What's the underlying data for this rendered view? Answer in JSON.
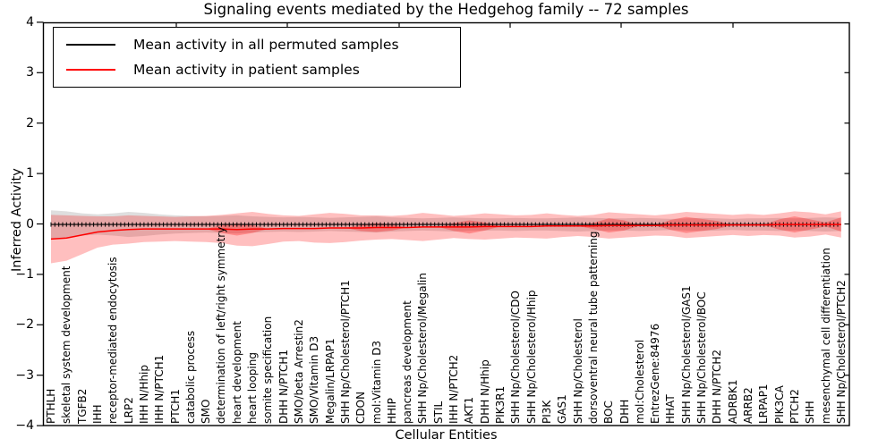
{
  "legend": {
    "items": [
      {
        "label": "Mean activity in all permuted samples",
        "color": "#000000"
      },
      {
        "label": "Mean activity in patient samples",
        "color": "#ff0000"
      }
    ]
  },
  "chart_data": {
    "type": "line",
    "title": "Signaling events mediated by the Hedgehog family -- 72 samples",
    "xlabel": "Cellular Entities",
    "ylabel": "Inferred Activity",
    "ylim": [
      -4,
      4
    ],
    "yticks": [
      4,
      3,
      2,
      1,
      0,
      -1,
      -2,
      -3,
      -4
    ],
    "ytick_labels": [
      "4",
      "3",
      "2",
      "1",
      "0",
      "−1",
      "−2",
      "−3",
      "−4"
    ],
    "grid": false,
    "legend_position": "upper left",
    "categories": [
      "PTHLH",
      "skeletal system development",
      "TGFB2",
      "IHH",
      "receptor-mediated endocytosis",
      "LRP2",
      "IHH N/Hhip",
      "IHH N/PTCH1",
      "PTCH1",
      "catabolic process",
      "SMO",
      "determination of left/right symmetry",
      "heart development",
      "heart looping",
      "somite specification",
      "DHH N/PTCH1",
      "SMO/beta Arrestin2",
      "SMO/Vitamin D3",
      "Megalin/LRPAP1",
      "SHH Np/Cholesterol/PTCH1",
      "CDON",
      "mol:Vitamin D3",
      "HHIP",
      "pancreas development",
      "SHH Np/Cholesterol/Megalin",
      "STIL",
      "IHH N/PTCH2",
      "AKT1",
      "DHH N/Hhip",
      "PIK3R1",
      "SHH Np/Cholesterol/CDO",
      "SHH Np/Cholesterol/Hhip",
      "PI3K",
      "GAS1",
      "SHH Np/Cholesterol",
      "dorsoventral neural tube patterning",
      "BOC",
      "DHH",
      "mol:Cholesterol",
      "EntrezGene:84976",
      "HHAT",
      "SHH Np/Cholesterol/GAS1",
      "SHH Np/Cholesterol/BOC",
      "DHH N/PTCH2",
      "ADRBK1",
      "ARRB2",
      "LRPAP1",
      "PIK3CA",
      "PTCH2",
      "SHH",
      "mesenchymal cell differentiation",
      "SHH Np/Cholesterol/PTCH2"
    ],
    "series": [
      {
        "name": "Mean activity in all permuted samples",
        "color": "#000000",
        "values": [
          -0.01,
          -0.01,
          -0.01,
          -0.01,
          -0.01,
          -0.01,
          -0.01,
          -0.01,
          -0.01,
          -0.01,
          -0.01,
          -0.01,
          -0.01,
          -0.01,
          -0.01,
          -0.01,
          -0.01,
          -0.01,
          -0.01,
          -0.01,
          -0.01,
          -0.01,
          -0.01,
          -0.01,
          -0.01,
          -0.01,
          -0.01,
          -0.01,
          -0.01,
          -0.01,
          -0.01,
          -0.01,
          -0.01,
          -0.01,
          -0.01,
          -0.01,
          -0.01,
          -0.01,
          -0.01,
          -0.01,
          -0.01,
          -0.01,
          -0.01,
          -0.01,
          -0.01,
          -0.01,
          -0.01,
          -0.01,
          -0.01,
          -0.01,
          -0.01,
          -0.01
        ]
      },
      {
        "name": "Mean activity in patient samples",
        "color": "#ff0000",
        "values": [
          -0.3,
          -0.28,
          -0.22,
          -0.16,
          -0.13,
          -0.11,
          -0.1,
          -0.1,
          -0.1,
          -0.1,
          -0.1,
          -0.1,
          -0.11,
          -0.1,
          -0.1,
          -0.09,
          -0.09,
          -0.09,
          -0.08,
          -0.08,
          -0.08,
          -0.07,
          -0.07,
          -0.07,
          -0.06,
          -0.06,
          -0.06,
          -0.06,
          -0.05,
          -0.05,
          -0.05,
          -0.05,
          -0.04,
          -0.04,
          -0.04,
          -0.04,
          -0.03,
          -0.03,
          -0.03,
          -0.03,
          -0.02,
          -0.02,
          -0.02,
          -0.02,
          -0.02,
          -0.02,
          -0.02,
          -0.01,
          -0.01,
          -0.01,
          -0.01,
          -0.01
        ]
      }
    ],
    "bands": [
      {
        "name": "permuted-std",
        "color": "#999999",
        "opacity": 0.32,
        "mean_ref": 0,
        "halfwidths": [
          0.28,
          0.26,
          0.22,
          0.2,
          0.22,
          0.25,
          0.23,
          0.2,
          0.18,
          0.17,
          0.16,
          0.17,
          0.18,
          0.16,
          0.15,
          0.14,
          0.15,
          0.14,
          0.13,
          0.14,
          0.15,
          0.16,
          0.14,
          0.13,
          0.12,
          0.13,
          0.14,
          0.13,
          0.12,
          0.12,
          0.13,
          0.12,
          0.12,
          0.13,
          0.14,
          0.13,
          0.12,
          0.12,
          0.13,
          0.12,
          0.11,
          0.12,
          0.13,
          0.12,
          0.11,
          0.12,
          0.12,
          0.13,
          0.12,
          0.13,
          0.14,
          0.13
        ]
      },
      {
        "name": "patient-std",
        "color": "#ff0000",
        "opacity": 0.25,
        "mean_ref": 1,
        "halfwidths": [
          0.48,
          0.45,
          0.38,
          0.31,
          0.28,
          0.28,
          0.26,
          0.25,
          0.24,
          0.25,
          0.26,
          0.28,
          0.32,
          0.34,
          0.3,
          0.26,
          0.25,
          0.28,
          0.3,
          0.28,
          0.25,
          0.24,
          0.23,
          0.25,
          0.28,
          0.25,
          0.22,
          0.24,
          0.26,
          0.24,
          0.22,
          0.23,
          0.25,
          0.22,
          0.2,
          0.22,
          0.26,
          0.24,
          0.22,
          0.2,
          0.22,
          0.26,
          0.24,
          0.22,
          0.2,
          0.22,
          0.2,
          0.22,
          0.26,
          0.24,
          0.2,
          0.26
        ]
      },
      {
        "name": "patient-std-inner",
        "color": "#ff0000",
        "opacity": 0.28,
        "mean_ref": 1,
        "halfwidths": [
          0,
          0,
          0,
          0,
          0,
          0,
          0,
          0,
          0,
          0,
          0,
          0.08,
          0.12,
          0.08,
          0,
          0,
          0,
          0,
          0,
          0,
          0.06,
          0.09,
          0.06,
          0,
          0,
          0,
          0.08,
          0.13,
          0.08,
          0,
          0,
          0,
          0,
          0,
          0,
          0.06,
          0.14,
          0.1,
          0,
          0,
          0.1,
          0.16,
          0.12,
          0.08,
          0,
          0,
          0,
          0.1,
          0.16,
          0.1,
          0.04,
          0.14
        ]
      }
    ]
  }
}
